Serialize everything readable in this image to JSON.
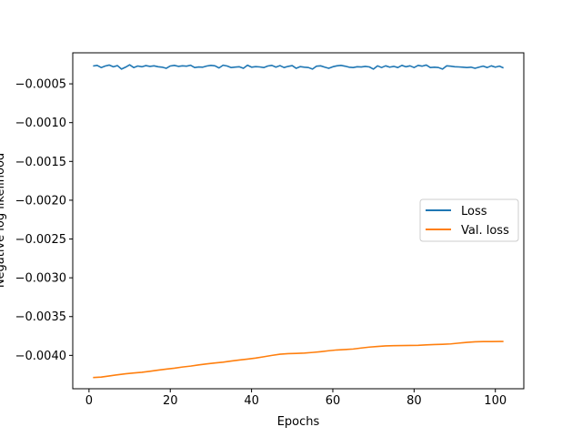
{
  "chart_data": {
    "type": "line",
    "title": "",
    "xlabel": "Epochs",
    "ylabel": "Negative log likelihood",
    "xlim": [
      -4,
      107
    ],
    "ylim": [
      -0.00443,
      -0.0001
    ],
    "xticks": [
      0,
      20,
      40,
      60,
      80,
      100
    ],
    "xtick_labels": [
      "0",
      "20",
      "40",
      "60",
      "80",
      "100"
    ],
    "yticks": [
      -0.0005,
      -0.001,
      -0.0015,
      -0.002,
      -0.0025,
      -0.003,
      -0.0035,
      -0.004
    ],
    "ytick_labels": [
      "−0.0005",
      "−0.0010",
      "−0.0015",
      "−0.0020",
      "−0.0025",
      "−0.0030",
      "−0.0035",
      "−0.0040"
    ],
    "grid": false,
    "legend": {
      "placement": "center-right"
    },
    "series": [
      {
        "name": "Loss",
        "color": "#1f77b4",
        "x": [
          1,
          2,
          3,
          4,
          5,
          6,
          7,
          8,
          9,
          10,
          11,
          12,
          13,
          14,
          15,
          16,
          17,
          18,
          19,
          20,
          21,
          22,
          23,
          24,
          25,
          26,
          27,
          28,
          29,
          30,
          31,
          32,
          33,
          34,
          35,
          36,
          37,
          38,
          39,
          40,
          41,
          42,
          43,
          44,
          45,
          46,
          47,
          48,
          49,
          50,
          51,
          52,
          53,
          54,
          55,
          56,
          57,
          58,
          59,
          60,
          61,
          62,
          63,
          64,
          65,
          66,
          67,
          68,
          69,
          70,
          71,
          72,
          73,
          74,
          75,
          76,
          77,
          78,
          79,
          80,
          81,
          82,
          83,
          84,
          85,
          86,
          87,
          88,
          89,
          90,
          91,
          92,
          93,
          94,
          95,
          96,
          97,
          98,
          99,
          100,
          101,
          102
        ],
        "y": [
          -0.00027,
          -0.000262,
          -0.00029,
          -0.00027,
          -0.000258,
          -0.00028,
          -0.000265,
          -0.00031,
          -0.000285,
          -0.000255,
          -0.00029,
          -0.00027,
          -0.00028,
          -0.000265,
          -0.000275,
          -0.000268,
          -0.00028,
          -0.000285,
          -0.0003,
          -0.00027,
          -0.000262,
          -0.000275,
          -0.000268,
          -0.000272,
          -0.00026,
          -0.00029,
          -0.000283,
          -0.000285,
          -0.00027,
          -0.000262,
          -0.000268,
          -0.000295,
          -0.00026,
          -0.00027,
          -0.00029,
          -0.000284,
          -0.00028,
          -0.0003,
          -0.00026,
          -0.000285,
          -0.000278,
          -0.000282,
          -0.00029,
          -0.00027,
          -0.000262,
          -0.000285,
          -0.000265,
          -0.00029,
          -0.000275,
          -0.000265,
          -0.0003,
          -0.000278,
          -0.000285,
          -0.00029,
          -0.00031,
          -0.000272,
          -0.000268,
          -0.000285,
          -0.0003,
          -0.00028,
          -0.000268,
          -0.000262,
          -0.000272,
          -0.000285,
          -0.00029,
          -0.00028,
          -0.000283,
          -0.000275,
          -0.000282,
          -0.00031,
          -0.000268,
          -0.00029,
          -0.000268,
          -0.000285,
          -0.000275,
          -0.00029,
          -0.000262,
          -0.00028,
          -0.000268,
          -0.00029,
          -0.000262,
          -0.000272,
          -0.000258,
          -0.00029,
          -0.000285,
          -0.00029,
          -0.00031,
          -0.000268,
          -0.000272,
          -0.00028,
          -0.000282,
          -0.000285,
          -0.00029,
          -0.000285,
          -0.0003,
          -0.000285,
          -0.000272,
          -0.00029,
          -0.000268,
          -0.000285,
          -0.000272,
          -0.000295
        ]
      },
      {
        "name": "Val. loss",
        "color": "#ff7f0e",
        "x": [
          1,
          3,
          5,
          7,
          9,
          11,
          13,
          15,
          17,
          19,
          21,
          23,
          25,
          27,
          29,
          31,
          33,
          35,
          37,
          39,
          41,
          43,
          45,
          47,
          49,
          51,
          53,
          55,
          57,
          59,
          61,
          63,
          65,
          67,
          69,
          71,
          73,
          75,
          77,
          79,
          81,
          83,
          85,
          87,
          89,
          91,
          93,
          95,
          97,
          99,
          101,
          102
        ],
        "y": [
          -0.004285,
          -0.00428,
          -0.004265,
          -0.00425,
          -0.004237,
          -0.004227,
          -0.004218,
          -0.004205,
          -0.00419,
          -0.004177,
          -0.004165,
          -0.00415,
          -0.004138,
          -0.004123,
          -0.00411,
          -0.004098,
          -0.004087,
          -0.004073,
          -0.00406,
          -0.004048,
          -0.004035,
          -0.004018,
          -0.004,
          -0.003985,
          -0.003978,
          -0.003975,
          -0.00397,
          -0.003962,
          -0.003952,
          -0.00394,
          -0.00393,
          -0.003925,
          -0.003918,
          -0.003905,
          -0.003893,
          -0.003885,
          -0.003878,
          -0.003875,
          -0.003873,
          -0.003872,
          -0.00387,
          -0.003865,
          -0.00386,
          -0.003857,
          -0.003852,
          -0.003842,
          -0.003832,
          -0.003825,
          -0.003822,
          -0.003822,
          -0.00382,
          -0.00382
        ]
      }
    ]
  }
}
